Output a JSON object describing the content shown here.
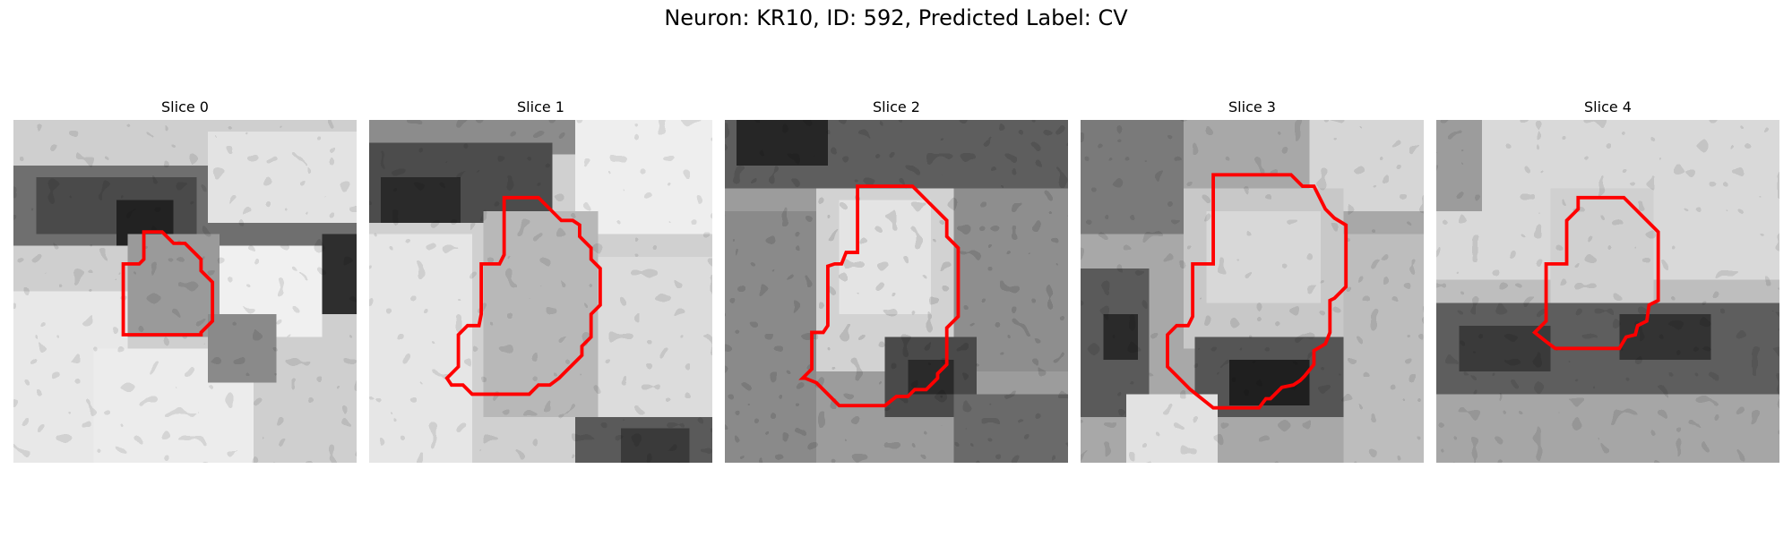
{
  "figure": {
    "title": "Neuron: KR10, ID: 592, Predicted Label: CV",
    "outline_color": "#ff0000"
  },
  "slices": [
    {
      "label": "Slice 0"
    },
    {
      "label": "Slice 1"
    },
    {
      "label": "Slice 2"
    },
    {
      "label": "Slice 3"
    },
    {
      "label": "Slice 4"
    }
  ]
}
